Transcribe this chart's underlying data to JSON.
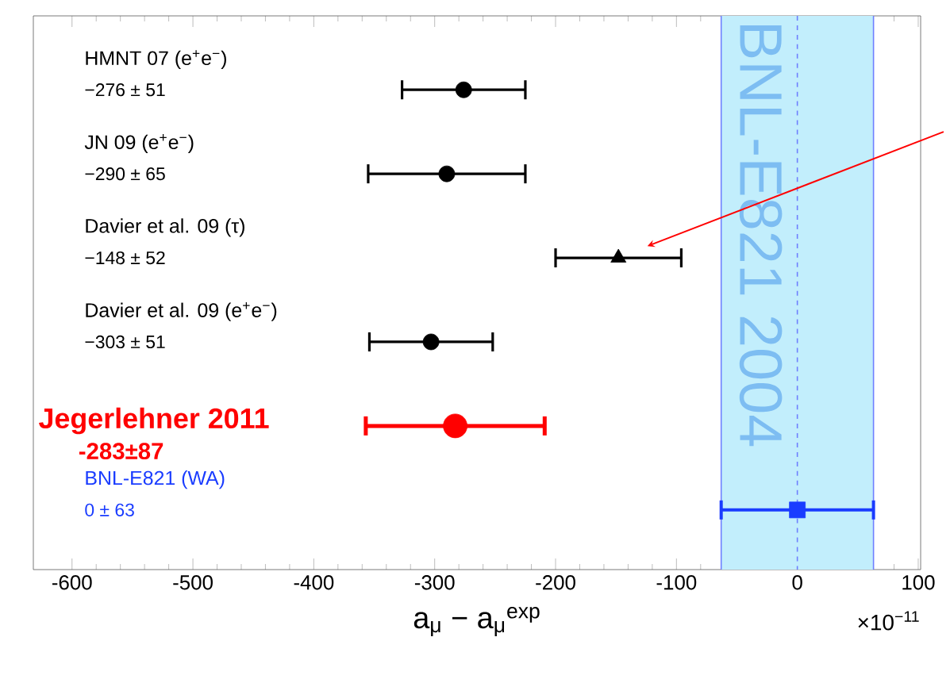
{
  "chart_data": {
    "type": "scatter",
    "orientation": "horizontal",
    "xlabel": "a$_{μ}$ − a$_{μ}$$^{exp}$",
    "categories": [
      "HMNT 07 (e$^{+}$e$^{−}$)",
      "JN 09 (e$^{+}$e$^{−}$)",
      "Davier et al. 09 (τ)",
      "Davier et al. 09 (e$^{+}$e$^{−}$)",
      "Jegerlehner 2011",
      "BNL-E821 (WA)"
    ],
    "series": [
      {
        "type": "scatter",
        "marker": "circle",
        "color": "#000000",
        "values": [
          -276,
          -290,
          null,
          -303,
          null,
          null
        ],
        "errors": [
          51,
          65,
          null,
          51,
          null,
          null
        ]
      },
      {
        "type": "scatter",
        "marker": "triangle",
        "color": "#000000",
        "values": [
          null,
          null,
          -148,
          null,
          null,
          null
        ],
        "errors": [
          null,
          null,
          52,
          null,
          null,
          null
        ]
      },
      {
        "type": "scatter",
        "marker": "circle",
        "color": "#ff0000",
        "values": [
          null,
          null,
          null,
          null,
          -283,
          null
        ],
        "errors": [
          null,
          null,
          null,
          null,
          74,
          null
        ]
      },
      {
        "type": "scatter",
        "marker": "square",
        "color": "#1a3cff",
        "values": [
          null,
          null,
          null,
          null,
          null,
          0
        ],
        "errors": [
          null,
          null,
          null,
          null,
          null,
          63
        ]
      }
    ],
    "xlim": [
      -632,
      102
    ],
    "xticks": [
      -600,
      -500,
      -400,
      -300,
      -200,
      -100,
      0,
      100
    ],
    "ref_lines": [
      {
        "axis": "x",
        "value": 0,
        "color": "#6f7fff",
        "line_style": "dashed"
      },
      {
        "axis": "x",
        "value": -63,
        "color": "#6f7fff",
        "line_style": "solid"
      },
      {
        "axis": "x",
        "value": 63,
        "color": "#6f7fff",
        "line_style": "solid"
      }
    ],
    "bands": [
      {
        "axis": "x",
        "from": -63,
        "to": 63,
        "label": "BNL-E821 2004",
        "color": "#c2eefc"
      }
    ],
    "annotations": [
      "−276 ± 51",
      "−290 ± 65",
      "−148 ± 52",
      "−303 ± 51",
      "-283±87",
      "0 ± 63",
      "×10$^{−11}$"
    ]
  }
}
